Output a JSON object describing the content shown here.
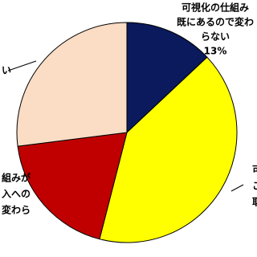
{
  "chart_data": {
    "type": "pie",
    "labels": [
      [
        "可視化の仕組み",
        "既にあるので変わ",
        "らない"
      ],
      [
        "可",
        "こ",
        "取"
      ],
      [
        "組みが",
        "入への",
        "変わら"
      ],
      [
        "い"
      ]
    ],
    "values": [
      13,
      41,
      19,
      27
    ],
    "value_labels": [
      "13%",
      null,
      null,
      null
    ],
    "colors": [
      "#0a1a5c",
      "#ffff00",
      "#c00000",
      "#fbdcc4"
    ]
  }
}
